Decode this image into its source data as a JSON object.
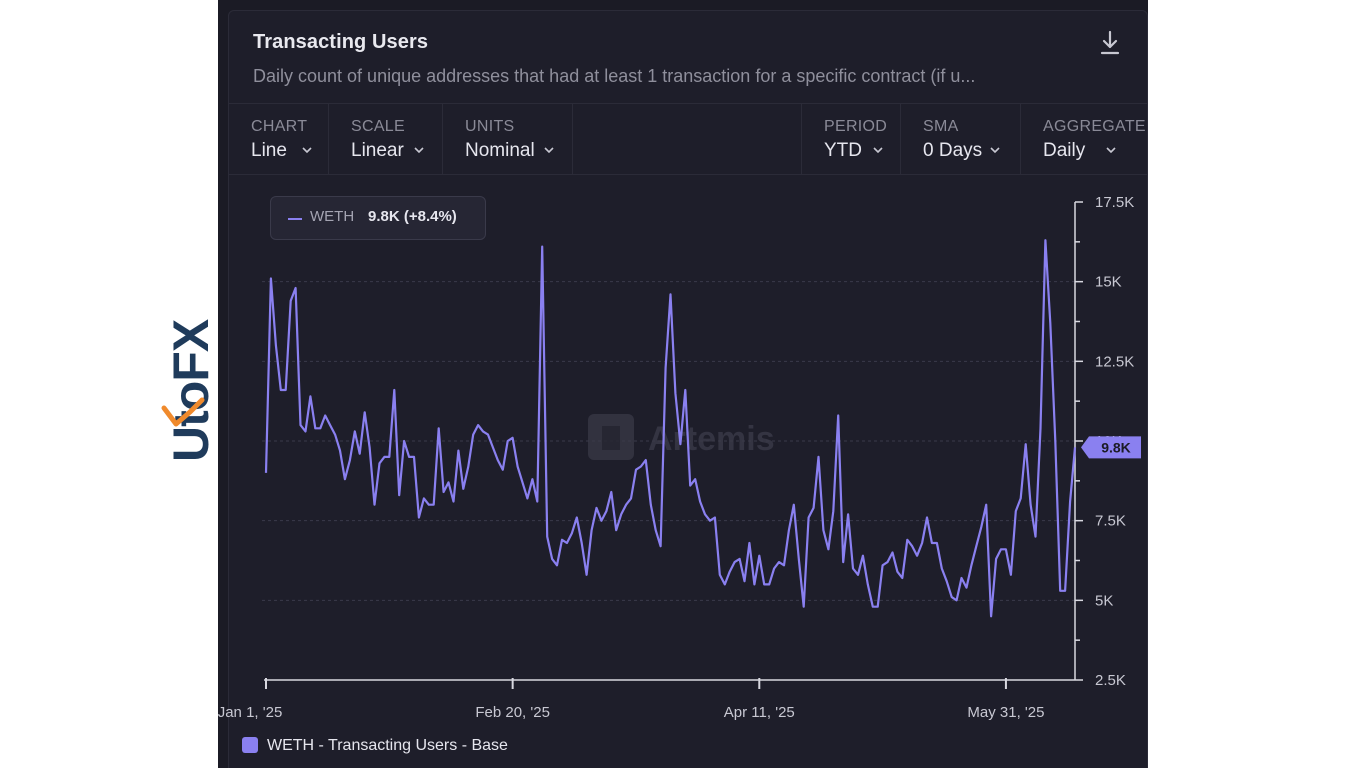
{
  "brand": {
    "logo_text": "UtoFX",
    "colors": {
      "navy": "#1f3b5b",
      "orange": "#f08a2c"
    }
  },
  "card": {
    "title": "Transacting Users",
    "subtitle": "Daily count of unique addresses that had at least 1 transaction for a specific contract (if u...",
    "download_icon": "download-icon"
  },
  "controls": {
    "chart": {
      "label": "CHART",
      "value": "Line"
    },
    "scale": {
      "label": "SCALE",
      "value": "Linear"
    },
    "units": {
      "label": "UNITS",
      "value": "Nominal"
    },
    "period": {
      "label": "PERIOD",
      "value": "YTD"
    },
    "sma": {
      "label": "SMA",
      "value": "0 Days"
    },
    "aggregate": {
      "label": "AGGREGATE",
      "value": "Daily"
    }
  },
  "tooltip": {
    "name": "WETH",
    "value": "9.8K (+8.4%)"
  },
  "watermark": "Artemis",
  "current_value_label": "9.8K",
  "legend_label": "WETH - Transacting Users - Base",
  "chart_data": {
    "type": "line",
    "title": "Transacting Users",
    "ylim": [
      2500,
      17500
    ],
    "y_ticks": [
      2500,
      5000,
      7500,
      10000,
      12500,
      15000,
      17500
    ],
    "y_tick_labels": [
      "2.5K",
      "5K",
      "7.5K",
      "10K",
      "12.5K",
      "15K",
      "17.5K"
    ],
    "x_ticks": [
      "Jan 1, '25",
      "Feb 20, '25",
      "Apr 11, '25",
      "May 31, '25"
    ],
    "y_axis_position": "right",
    "grid": true,
    "legend_position": "bottom-left",
    "colors": {
      "line": "#8a80f0"
    },
    "x_start": "2025-01-01",
    "x_end": "2025-06-12",
    "series": [
      {
        "name": "WETH - Transacting Users - Base",
        "values": [
          9000,
          15100,
          13000,
          11600,
          11600,
          14400,
          14800,
          10500,
          10300,
          11400,
          10400,
          10400,
          10800,
          10500,
          10200,
          9700,
          8800,
          9400,
          10300,
          9600,
          10900,
          9800,
          8000,
          9300,
          9500,
          9500,
          11600,
          8300,
          10000,
          9500,
          9500,
          7600,
          8200,
          8000,
          8000,
          10400,
          8400,
          8700,
          8100,
          9700,
          8500,
          9200,
          10200,
          10500,
          10300,
          10200,
          9800,
          9400,
          9100,
          10000,
          10100,
          9200,
          8700,
          8200,
          8800,
          8100,
          16100,
          7000,
          6300,
          6100,
          6900,
          6800,
          7100,
          7600,
          6800,
          5800,
          7200,
          7900,
          7500,
          7800,
          8400,
          7200,
          7700,
          8000,
          8200,
          9100,
          9200,
          9400,
          8000,
          7200,
          6700,
          12300,
          14600,
          11500,
          9900,
          11600,
          8600,
          8800,
          8100,
          7700,
          7500,
          7600,
          5800,
          5500,
          5900,
          6200,
          6300,
          5600,
          6800,
          5500,
          6400,
          5500,
          5500,
          6000,
          6200,
          6100,
          7200,
          8000,
          6300,
          4800,
          7600,
          7900,
          9500,
          7200,
          6600,
          7800,
          10800,
          6200,
          7700,
          6000,
          5800,
          6400,
          5500,
          4800,
          4800,
          6100,
          6200,
          6500,
          5900,
          5700,
          6900,
          6700,
          6400,
          6800,
          7600,
          6800,
          6800,
          6000,
          5600,
          5100,
          5000,
          5700,
          5400,
          6100,
          6700,
          7300,
          8000,
          4500,
          6300,
          6600,
          6600,
          5800,
          7800,
          8200,
          9900,
          8000,
          7000,
          10400,
          16300,
          13700,
          10000,
          5300,
          5300,
          8100,
          9800
        ]
      }
    ]
  }
}
